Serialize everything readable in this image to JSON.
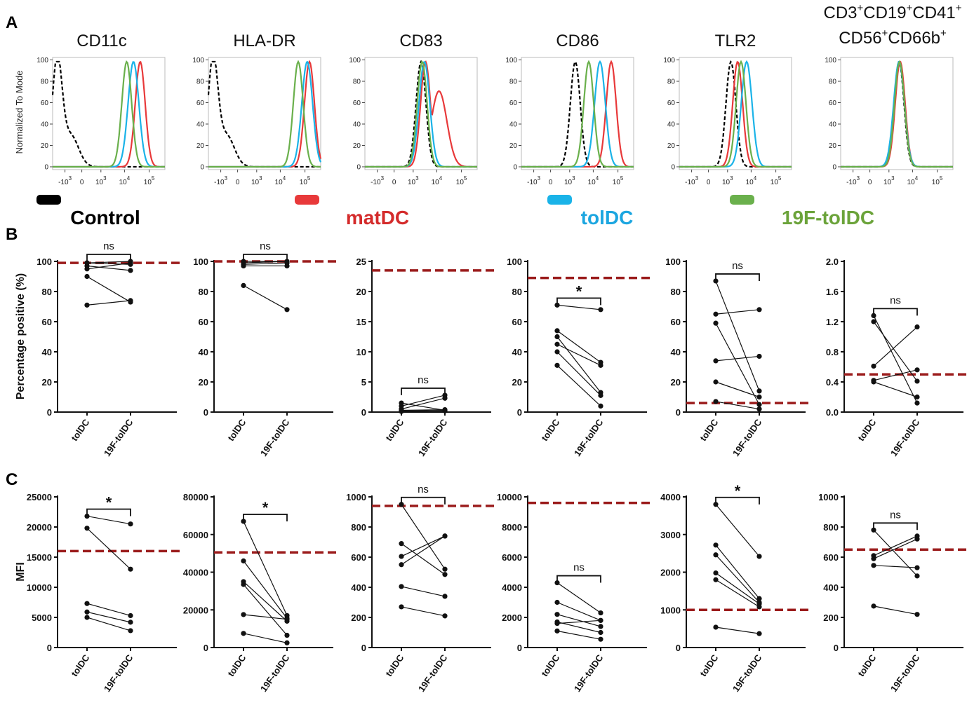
{
  "chart_data": {
    "panels": {
      "A": "A",
      "B": "B",
      "C": "C"
    },
    "legend": [
      {
        "label": "Control",
        "color": "#000000",
        "dashed": true
      },
      {
        "label": "matDC",
        "color": "#e8393a",
        "dashed": false
      },
      {
        "label": "tolDC",
        "color": "#1ab3e8",
        "dashed": false
      },
      {
        "label": "19F-tolDC",
        "color": "#6ab04c",
        "dashed": false
      }
    ],
    "legend_text_colors": [
      "#000000",
      "#d42b2b",
      "#1ca6e0",
      "#6ba33a"
    ],
    "histograms": {
      "type": "line",
      "ylabel": "Normalized To Mode",
      "yticks": [
        "0",
        "20",
        "40",
        "60",
        "80",
        "100"
      ],
      "xticks": [
        {
          "base": "-10",
          "exp": "3"
        },
        {
          "base": "0",
          "exp": ""
        },
        {
          "base": "10",
          "exp": "3"
        },
        {
          "base": "10",
          "exp": "4"
        },
        {
          "base": "10",
          "exp": "5"
        }
      ],
      "markers": [
        "CD11c",
        "HLA-DR",
        "CD83",
        "CD86",
        "TLR2",
        "CD3+CD19+CD41+CD56+CD66b+"
      ],
      "last_title_lines": [
        [
          {
            "t": "CD3"
          },
          {
            "s": "+"
          },
          {
            "t": "CD19"
          },
          {
            "s": "+"
          },
          {
            "t": "CD41"
          },
          {
            "s": "+"
          }
        ],
        [
          {
            "t": "CD56"
          },
          {
            "s": "+"
          },
          {
            "t": "CD66b"
          },
          {
            "s": "+"
          }
        ]
      ],
      "peaks_log_units": [
        {
          "Control": 0.2,
          "matDC": 3.9,
          "tolDC": 3.6,
          "19F-tolDC": 3.3
        },
        {
          "Control": 0.2,
          "matDC": 4.5,
          "tolDC": 4.4,
          "19F-tolDC": 4.0
        },
        {
          "Control": 2.5,
          "matDC": 2.7,
          "tolDC": 2.65,
          "19F-tolDC": 2.55
        },
        {
          "Control": 2.4,
          "matDC": 4.0,
          "tolDC": 3.5,
          "19F-tolDC": 3.0
        },
        {
          "Control": 2.3,
          "matDC": 2.6,
          "tolDC": 3.0,
          "19F-tolDC": 2.75
        },
        {
          "Control": 2.6,
          "matDC": 2.65,
          "tolDC": 2.6,
          "19F-tolDC": 2.62
        }
      ]
    },
    "percentage": {
      "type": "line",
      "ylabel": "Percentage positive (%)",
      "categories": [
        "tolDC",
        "19F-tolDC"
      ],
      "plots": [
        {
          "marker": "CD11c",
          "ylim": [
            0,
            100
          ],
          "yticks": [
            "0",
            "20",
            "40",
            "60",
            "80",
            "100"
          ],
          "reference": 99,
          "pairs": [
            [
              71,
              74
            ],
            [
              90,
              73
            ],
            [
              95,
              99
            ],
            [
              97,
              94
            ],
            [
              99,
              98
            ],
            [
              99,
              100
            ]
          ],
          "sig": "ns"
        },
        {
          "marker": "HLA-DR",
          "ylim": [
            0,
            100
          ],
          "yticks": [
            "0",
            "20",
            "40",
            "60",
            "80",
            "100"
          ],
          "reference": 100,
          "pairs": [
            [
              84,
              68
            ],
            [
              97,
              97
            ],
            [
              98,
              99
            ],
            [
              99,
              100
            ],
            [
              100,
              100
            ]
          ],
          "sig": "ns"
        },
        {
          "marker": "CD83",
          "ylim": [
            0,
            25
          ],
          "yticks": [
            "0",
            "5",
            "10",
            "15",
            "20",
            "25"
          ],
          "reference": 23.5,
          "pairs": [
            [
              1.5,
              0.3
            ],
            [
              1.0,
              2.8
            ],
            [
              0.5,
              2.3
            ],
            [
              0.3,
              0.4
            ],
            [
              0.2,
              0.2
            ],
            [
              0.1,
              0.3
            ]
          ],
          "sig": "ns"
        },
        {
          "marker": "CD86",
          "ylim": [
            0,
            100
          ],
          "yticks": [
            "0",
            "20",
            "40",
            "60",
            "80",
            "100"
          ],
          "reference": 89,
          "pairs": [
            [
              71,
              68
            ],
            [
              54,
              33
            ],
            [
              50,
              13
            ],
            [
              45,
              31
            ],
            [
              40,
              11
            ],
            [
              31,
              4
            ]
          ],
          "sig": "*"
        },
        {
          "marker": "TLR2",
          "ylim": [
            0,
            100
          ],
          "yticks": [
            "0",
            "20",
            "40",
            "60",
            "80",
            "100"
          ],
          "reference": 6,
          "pairs": [
            [
              87,
              14
            ],
            [
              65,
              68
            ],
            [
              59,
              5
            ],
            [
              34,
              37
            ],
            [
              20,
              10
            ],
            [
              7,
              2
            ]
          ],
          "sig": "ns"
        },
        {
          "marker": "CD3+CD19+CD41+CD56+CD66b+",
          "ylim": [
            0,
            2.0
          ],
          "yticks": [
            "0.0",
            "0.4",
            "0.8",
            "1.2",
            "1.6",
            "2.0"
          ],
          "reference": 0.5,
          "pairs": [
            [
              1.28,
              0.12
            ],
            [
              1.2,
              0.41
            ],
            [
              0.61,
              1.13
            ],
            [
              0.42,
              0.56
            ],
            [
              0.4,
              0.2
            ]
          ],
          "sig": "ns"
        }
      ]
    },
    "mfi": {
      "type": "line",
      "ylabel": "MFI",
      "categories": [
        "tolDC",
        "19F-tolDC"
      ],
      "plots": [
        {
          "marker": "CD11c",
          "ylim": [
            0,
            25000
          ],
          "yticks": [
            "0",
            "5000",
            "10000",
            "15000",
            "20000",
            "25000"
          ],
          "reference": 16000,
          "pairs": [
            [
              21800,
              20500
            ],
            [
              19800,
              13000
            ],
            [
              7300,
              5300
            ],
            [
              5900,
              4200
            ],
            [
              5000,
              2800
            ]
          ],
          "sig": "*"
        },
        {
          "marker": "HLA-DR",
          "ylim": [
            0,
            80000
          ],
          "yticks": [
            "0",
            "20000",
            "40000",
            "60000",
            "80000"
          ],
          "reference": 50500,
          "pairs": [
            [
              67000,
              17000
            ],
            [
              46000,
              15500
            ],
            [
              35000,
              14000
            ],
            [
              33500,
              6500
            ],
            [
              17500,
              15000
            ],
            [
              7500,
              2500
            ]
          ],
          "sig": "*"
        },
        {
          "marker": "CD83",
          "ylim": [
            0,
            1000
          ],
          "yticks": [
            "0",
            "200",
            "400",
            "600",
            "800",
            "1000"
          ],
          "reference": 940,
          "pairs": [
            [
              950,
              520
            ],
            [
              690,
              485
            ],
            [
              605,
              740
            ],
            [
              550,
              740
            ],
            [
              405,
              340
            ],
            [
              270,
              210
            ]
          ],
          "sig": "ns"
        },
        {
          "marker": "CD86",
          "ylim": [
            0,
            10000
          ],
          "yticks": [
            "0",
            "2000",
            "4000",
            "6000",
            "8000",
            "10000"
          ],
          "reference": 9600,
          "pairs": [
            [
              4300,
              2300
            ],
            [
              3000,
              1800
            ],
            [
              2200,
              1400
            ],
            [
              1700,
              1000
            ],
            [
              1600,
              1800
            ],
            [
              1100,
              550
            ]
          ],
          "sig": "ns"
        },
        {
          "marker": "TLR2",
          "ylim": [
            0,
            4000
          ],
          "yticks": [
            "0",
            "1000",
            "2000",
            "3000",
            "4000"
          ],
          "reference": 1000,
          "pairs": [
            [
              3800,
              2420
            ],
            [
              2720,
              1300
            ],
            [
              2460,
              1200
            ],
            [
              1980,
              1160
            ],
            [
              1800,
              1080
            ],
            [
              540,
              370
            ]
          ],
          "sig": "*"
        },
        {
          "marker": "CD3+CD19+CD41+CD56+CD66b+",
          "ylim": [
            0,
            1000
          ],
          "yticks": [
            "0",
            "200",
            "400",
            "600",
            "800",
            "1000"
          ],
          "reference": 650,
          "pairs": [
            [
              780,
              475
            ],
            [
              610,
              740
            ],
            [
              590,
              720
            ],
            [
              545,
              530
            ],
            [
              275,
              220
            ]
          ],
          "sig": "ns"
        }
      ]
    }
  }
}
